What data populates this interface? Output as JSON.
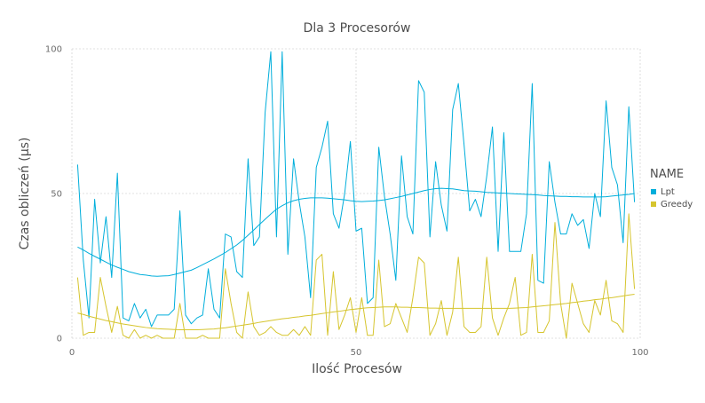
{
  "chart_data": {
    "type": "line",
    "title": "Dla 3 Procesorów",
    "xlabel": "Ilość Procesów",
    "ylabel": "Czas obliczeń (μs)",
    "xlim": [
      0,
      100
    ],
    "ylim": [
      0,
      100
    ],
    "xticks": [
      "0",
      "50",
      "100"
    ],
    "yticks": [
      "0",
      "50",
      "100"
    ],
    "grid": true,
    "legend": {
      "title": "NAME",
      "position": "right"
    },
    "x": [
      1,
      2,
      3,
      4,
      5,
      6,
      7,
      8,
      9,
      10,
      11,
      12,
      13,
      14,
      15,
      16,
      17,
      18,
      19,
      20,
      21,
      22,
      23,
      24,
      25,
      26,
      27,
      28,
      29,
      30,
      31,
      32,
      33,
      34,
      35,
      36,
      37,
      38,
      39,
      40,
      41,
      42,
      43,
      44,
      45,
      46,
      47,
      48,
      49,
      50,
      51,
      52,
      53,
      54,
      55,
      56,
      57,
      58,
      59,
      60,
      61,
      62,
      63,
      64,
      65,
      66,
      67,
      68,
      69,
      70,
      71,
      72,
      73,
      74,
      75,
      76,
      77,
      78,
      79,
      80,
      81,
      82,
      83,
      84,
      85,
      86,
      87,
      88,
      89,
      90,
      91,
      92,
      93,
      94,
      95,
      96,
      97,
      98,
      99
    ],
    "series": [
      {
        "name": "Lpt",
        "color": "#00aedb",
        "values": [
          60,
          27,
          7,
          48,
          26,
          42,
          21,
          57,
          7,
          6,
          12,
          7,
          10,
          4,
          8,
          8,
          8,
          10,
          44,
          8,
          5,
          7,
          8,
          24,
          10,
          7,
          36,
          35,
          23,
          21,
          62,
          32,
          35,
          78,
          99,
          35,
          99,
          29,
          62,
          47,
          35,
          14,
          59,
          66,
          75,
          43,
          38,
          50,
          68,
          37,
          38,
          12,
          14,
          66,
          49,
          36,
          20,
          63,
          42,
          36,
          89,
          85,
          35,
          61,
          46,
          37,
          79,
          88,
          67,
          44,
          48,
          42,
          56,
          73,
          30,
          71,
          30,
          30,
          30,
          43,
          88,
          20,
          19,
          61,
          47,
          36,
          36,
          43,
          39,
          41,
          31,
          50,
          42,
          82,
          59,
          53,
          33,
          80,
          47
        ],
        "trend": [
          31.5,
          30.5,
          29.3,
          28.3,
          27.3,
          26.3,
          25.3,
          24.5,
          23.8,
          23.0,
          22.5,
          22.0,
          21.8,
          21.5,
          21.4,
          21.5,
          21.6,
          22.0,
          22.5,
          23.0,
          23.5,
          24.4,
          25.4,
          26.4,
          27.4,
          28.5,
          29.6,
          30.9,
          32.2,
          33.8,
          35.6,
          37.4,
          39.3,
          41.1,
          42.9,
          44.6,
          45.8,
          46.8,
          47.5,
          48.0,
          48.3,
          48.5,
          48.5,
          48.5,
          48.4,
          48.2,
          48.0,
          47.8,
          47.5,
          47.3,
          47.2,
          47.3,
          47.4,
          47.6,
          47.8,
          48.2,
          48.6,
          49.0,
          49.5,
          50.0,
          50.5,
          51.0,
          51.4,
          51.7,
          51.8,
          51.7,
          51.6,
          51.3,
          51.0,
          50.9,
          50.8,
          50.6,
          50.4,
          50.3,
          50.2,
          50.1,
          50.0,
          49.9,
          49.8,
          49.7,
          49.6,
          49.5,
          49.3,
          49.2,
          49.1,
          49.0,
          49.0,
          48.9,
          48.9,
          48.8,
          48.8,
          48.8,
          48.8,
          48.9,
          49.1,
          49.3,
          49.5,
          49.7,
          50.0
        ]
      },
      {
        "name": "Greedy",
        "color": "#d6c52e",
        "values": [
          21,
          1,
          2,
          2,
          21,
          11,
          2,
          11,
          1,
          0,
          3,
          0,
          1,
          0,
          1,
          0,
          0,
          0,
          12,
          0,
          0,
          0,
          1,
          0,
          0,
          0,
          24,
          12,
          2,
          0,
          16,
          4,
          1,
          2,
          4,
          2,
          1,
          1,
          3,
          1,
          4,
          1,
          27,
          29,
          1,
          23,
          3,
          8,
          14,
          2,
          14,
          1,
          1,
          27,
          4,
          5,
          12,
          7,
          2,
          14,
          28,
          26,
          1,
          5,
          13,
          1,
          9,
          28,
          4,
          2,
          2,
          4,
          28,
          7,
          1,
          7,
          12,
          21,
          1,
          2,
          29,
          2,
          2,
          6,
          40,
          12,
          0,
          19,
          12,
          5,
          2,
          13,
          8,
          20,
          6,
          5,
          2,
          43,
          17
        ],
        "trend": [
          8.7,
          8.2,
          7.6,
          7.1,
          6.6,
          6.1,
          5.7,
          5.3,
          4.9,
          4.6,
          4.3,
          4.0,
          3.7,
          3.5,
          3.3,
          3.2,
          3.1,
          3.0,
          2.9,
          2.9,
          2.9,
          2.9,
          3.0,
          3.1,
          3.2,
          3.4,
          3.6,
          3.9,
          4.2,
          4.5,
          4.8,
          5.1,
          5.5,
          5.8,
          6.1,
          6.4,
          6.7,
          6.9,
          7.2,
          7.4,
          7.7,
          7.9,
          8.2,
          8.5,
          8.8,
          9.1,
          9.3,
          9.6,
          9.9,
          10.1,
          10.3,
          10.5,
          10.6,
          10.7,
          10.8,
          10.8,
          10.8,
          10.7,
          10.7,
          10.6,
          10.6,
          10.5,
          10.4,
          10.4,
          10.3,
          10.3,
          10.3,
          10.3,
          10.3,
          10.3,
          10.3,
          10.3,
          10.3,
          10.3,
          10.3,
          10.3,
          10.3,
          10.4,
          10.5,
          10.6,
          10.8,
          11.0,
          11.2,
          11.4,
          11.6,
          11.8,
          12.0,
          12.3,
          12.5,
          12.8,
          13.0,
          13.3,
          13.5,
          13.8,
          14.0,
          14.3,
          14.6,
          14.9,
          15.2
        ]
      }
    ]
  }
}
